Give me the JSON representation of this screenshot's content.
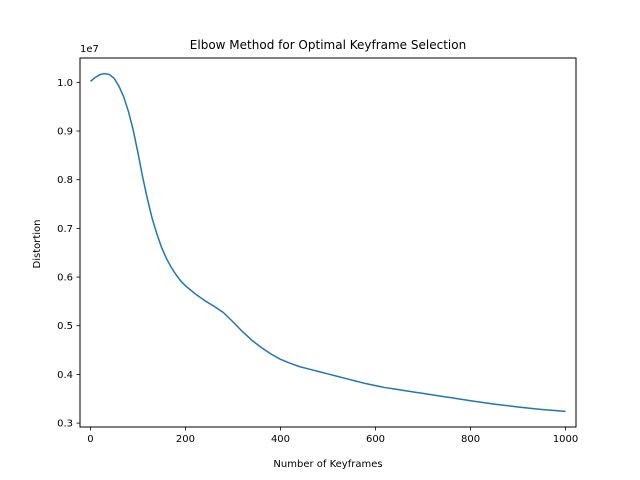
{
  "chart_data": {
    "type": "line",
    "title": "Elbow Method for Optimal Keyframe Selection",
    "xlabel": "Number of Keyframes",
    "ylabel": "Distortion",
    "y_scale_label": "1e7",
    "xlim": [
      -22,
      1022
    ],
    "ylim": [
      2.92,
      10.5
    ],
    "x_ticks": [
      0,
      200,
      400,
      600,
      800,
      1000
    ],
    "x_tick_labels": [
      "0",
      "200",
      "400",
      "600",
      "800",
      "1000"
    ],
    "y_ticks": [
      3,
      4,
      5,
      6,
      7,
      8,
      9,
      10
    ],
    "y_tick_labels": [
      "0.3",
      "0.4",
      "0.5",
      "0.6",
      "0.7",
      "0.8",
      "0.9",
      "1.0"
    ],
    "grid": false,
    "series": [
      {
        "color": "#1f77b4",
        "x": [
          0,
          10,
          20,
          30,
          40,
          50,
          60,
          70,
          80,
          90,
          100,
          110,
          120,
          130,
          140,
          150,
          160,
          170,
          180,
          190,
          200,
          220,
          240,
          260,
          280,
          300,
          320,
          340,
          360,
          380,
          400,
          420,
          440,
          460,
          480,
          500,
          520,
          540,
          560,
          580,
          600,
          620,
          640,
          660,
          680,
          700,
          720,
          740,
          760,
          780,
          800,
          850,
          900,
          950,
          1000
        ],
        "y": [
          10.02,
          10.1,
          10.16,
          10.18,
          10.16,
          10.08,
          9.92,
          9.7,
          9.4,
          9.02,
          8.55,
          8.05,
          7.6,
          7.2,
          6.88,
          6.6,
          6.38,
          6.2,
          6.05,
          5.92,
          5.82,
          5.66,
          5.52,
          5.4,
          5.27,
          5.08,
          4.88,
          4.7,
          4.55,
          4.42,
          4.31,
          4.23,
          4.16,
          4.11,
          4.06,
          4.01,
          3.96,
          3.91,
          3.86,
          3.81,
          3.77,
          3.73,
          3.7,
          3.67,
          3.64,
          3.61,
          3.58,
          3.55,
          3.52,
          3.49,
          3.46,
          3.39,
          3.33,
          3.28,
          3.24
        ]
      }
    ]
  }
}
